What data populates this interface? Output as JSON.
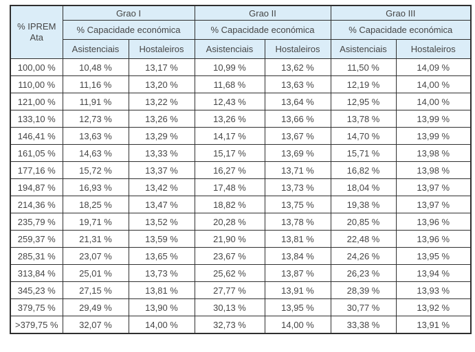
{
  "table": {
    "iprem_header": "% IPREM\nAta",
    "groups": [
      {
        "label": "Grao I",
        "sub": "% Capacidade económica",
        "cols": [
          "Asistenciais",
          "Hostaleiros"
        ]
      },
      {
        "label": "Grao II",
        "sub": "% Capacidade económica",
        "cols": [
          "Asistenciais",
          "Hostaleiros"
        ]
      },
      {
        "label": "Grao III",
        "sub": "% Capacidade económica",
        "cols": [
          "Asistenciais",
          "Hostaleiros"
        ]
      }
    ],
    "rows": [
      {
        "iprem": "100,00 %",
        "values": [
          "10,48 %",
          "13,17 %",
          "10,99 %",
          "13,62 %",
          "11,50 %",
          "14,09 %"
        ]
      },
      {
        "iprem": "110,00 %",
        "values": [
          "11,16 %",
          "13,20 %",
          "11,68 %",
          "13,63 %",
          "12,19 %",
          "14,00 %"
        ]
      },
      {
        "iprem": "121,00 %",
        "values": [
          "11,91 %",
          "13,22 %",
          "12,43 %",
          "13,64 %",
          "12,95 %",
          "14,00 %"
        ]
      },
      {
        "iprem": "133,10 %",
        "values": [
          "12,73 %",
          "13,26 %",
          "13,26 %",
          "13,66 %",
          "13,78 %",
          "13,99 %"
        ]
      },
      {
        "iprem": "146,41 %",
        "values": [
          "13,63 %",
          "13,29 %",
          "14,17 %",
          "13,67 %",
          "14,70 %",
          "13,99 %"
        ]
      },
      {
        "iprem": "161,05 %",
        "values": [
          "14,63 %",
          "13,33 %",
          "15,17 %",
          "13,69 %",
          "15,71 %",
          "13,98 %"
        ]
      },
      {
        "iprem": "177,16 %",
        "values": [
          "15,72 %",
          "13,37 %",
          "16,27 %",
          "13,71 %",
          "16,82 %",
          "13,98 %"
        ]
      },
      {
        "iprem": "194,87 %",
        "values": [
          "16,93 %",
          "13,42 %",
          "17,48 %",
          "13,73 %",
          "18,04 %",
          "13,97 %"
        ]
      },
      {
        "iprem": "214,36 %",
        "values": [
          "18,25 %",
          "13,47 %",
          "18,82 %",
          "13,75 %",
          "19,38 %",
          "13,97 %"
        ]
      },
      {
        "iprem": "235,79 %",
        "values": [
          "19,71 %",
          "13,52 %",
          "20,28 %",
          "13,78 %",
          "20,85 %",
          "13,96 %"
        ]
      },
      {
        "iprem": "259,37 %",
        "values": [
          "21,31 %",
          "13,59 %",
          "21,90 %",
          "13,81 %",
          "22,48 %",
          "13,96 %"
        ]
      },
      {
        "iprem": "285,31 %",
        "values": [
          "23,07 %",
          "13,65 %",
          "23,67 %",
          "13,84 %",
          "24,26 %",
          "13,95 %"
        ]
      },
      {
        "iprem": "313,84 %",
        "values": [
          "25,01 %",
          "13,73 %",
          "25,62 %",
          "13,87 %",
          "26,23 %",
          "13,94 %"
        ]
      },
      {
        "iprem": "345,23 %",
        "values": [
          "27,15 %",
          "13,81 %",
          "27,77 %",
          "13,91 %",
          "28,39 %",
          "13,93 %"
        ]
      },
      {
        "iprem": "379,75 %",
        "values": [
          "29,49 %",
          "13,90 %",
          "30,13 %",
          "13,95 %",
          "30,77 %",
          "13,92 %"
        ]
      },
      {
        "iprem": ">379,75 %",
        "values": [
          "32,07 %",
          "14,00 %",
          "32,73 %",
          "14,00 %",
          "33,38 %",
          "13,91 %"
        ]
      }
    ]
  },
  "colors": {
    "header_bg": "#dbedf8",
    "border": "#2e2e2e",
    "text": "#454545",
    "page_bg": "#ffffff"
  }
}
